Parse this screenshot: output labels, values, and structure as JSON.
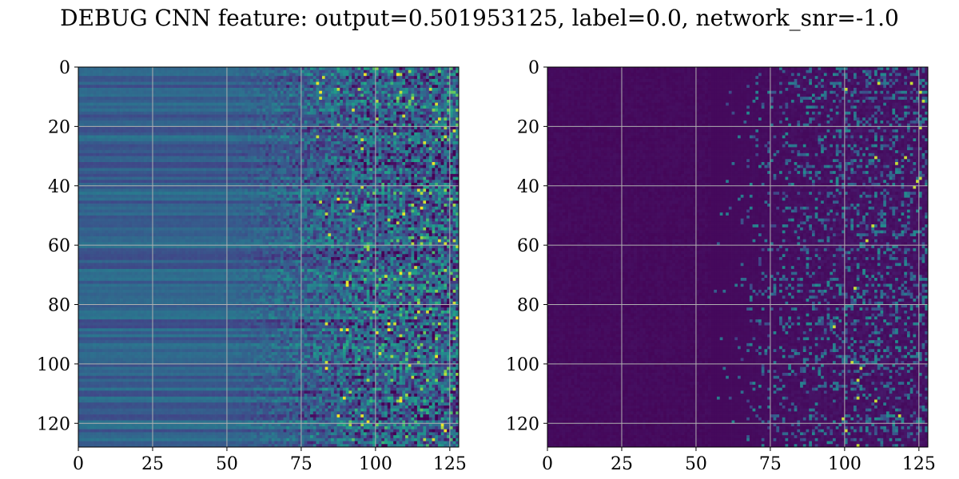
{
  "title": "DEBUG CNN feature: output=0.501953125, label=0.0, network_snr=-1.0",
  "chart_data": [
    {
      "type": "heatmap",
      "panel": "left",
      "colormap": "viridis",
      "grid": true,
      "xlim": [
        0,
        128
      ],
      "ylim": [
        128,
        0
      ],
      "x_ticks": [
        0,
        25,
        50,
        75,
        100,
        125
      ],
      "y_ticks": [
        0,
        20,
        40,
        60,
        80,
        100,
        120
      ],
      "x_tick_labels": [
        "0",
        "25",
        "50",
        "75",
        "100",
        "125"
      ],
      "y_tick_labels": [
        "0",
        "20",
        "40",
        "60",
        "80",
        "100",
        "120"
      ],
      "rows": 128,
      "cols": 128,
      "pattern": "row-banded teal/blue values for columns 0-50, increasingly noisy mixed values from ~60 to 128 with scattered bright yellow-green pixels"
    },
    {
      "type": "heatmap",
      "panel": "right",
      "colormap": "viridis",
      "grid": true,
      "xlim": [
        0,
        128
      ],
      "ylim": [
        128,
        0
      ],
      "x_ticks": [
        0,
        25,
        50,
        75,
        100,
        125
      ],
      "y_ticks": [
        0,
        20,
        40,
        60,
        80,
        100,
        120
      ],
      "x_tick_labels": [
        "0",
        "25",
        "50",
        "75",
        "100",
        "125"
      ],
      "y_tick_labels": [
        "0",
        "20",
        "40",
        "60",
        "80",
        "100",
        "120"
      ],
      "rows": 128,
      "cols": 128,
      "pattern": "mostly dark purple for columns 0-60, sparse horizontal blue/green streaks from ~65 to 128 with occasional yellow pixels"
    }
  ]
}
